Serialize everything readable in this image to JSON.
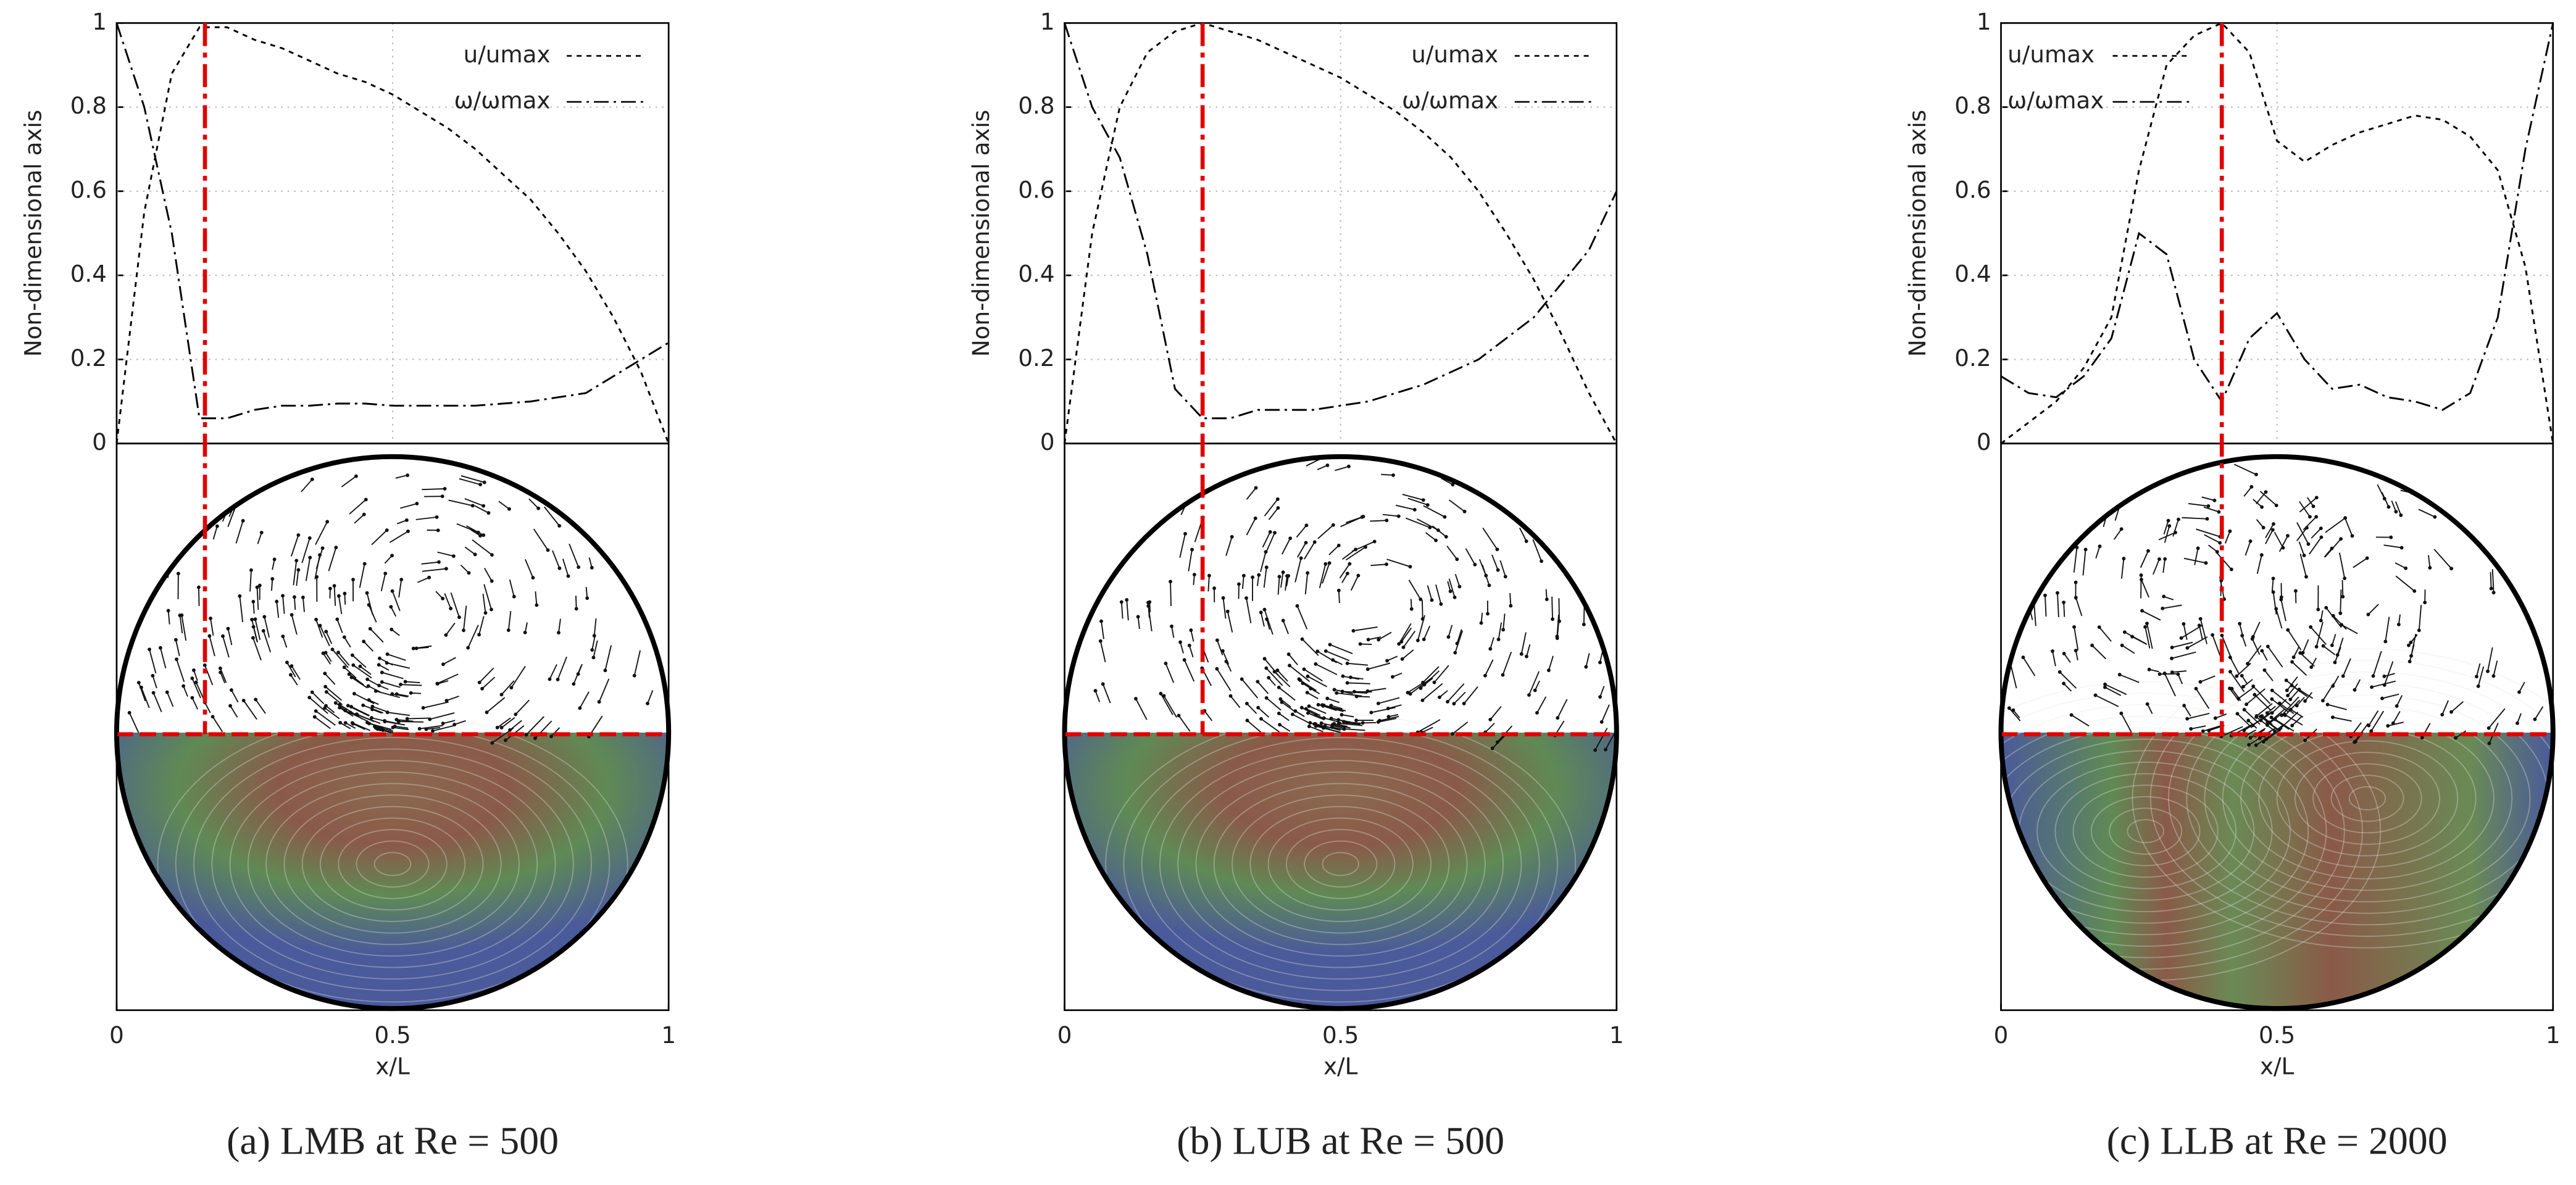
{
  "chart_data": [
    {
      "type": "line",
      "caption": "(a) LMB at Re = 500",
      "xlabel": "x/L",
      "ylabel": "Non-dimensional axis",
      "x": [
        0,
        0.05,
        0.1,
        0.15,
        0.2,
        0.25,
        0.3,
        0.35,
        0.4,
        0.45,
        0.5,
        0.55,
        0.6,
        0.65,
        0.7,
        0.75,
        0.8,
        0.85,
        0.9,
        0.95,
        1
      ],
      "series": [
        {
          "name": "u/umax",
          "color": "#000000",
          "style": "dashed",
          "values": [
            0,
            0.55,
            0.88,
            0.99,
            0.99,
            0.96,
            0.94,
            0.91,
            0.88,
            0.86,
            0.83,
            0.79,
            0.75,
            0.7,
            0.64,
            0.58,
            0.5,
            0.41,
            0.3,
            0.17,
            0
          ]
        },
        {
          "name": "ω/ωmax",
          "color": "#000000",
          "style": "dash-dot",
          "values": [
            1,
            0.8,
            0.5,
            0.06,
            0.06,
            0.08,
            0.09,
            0.09,
            0.095,
            0.095,
            0.09,
            0.09,
            0.09,
            0.09,
            0.095,
            0.1,
            0.11,
            0.12,
            0.16,
            0.2,
            0.24
          ]
        }
      ],
      "vline_x": 0.16,
      "vline_color": "#e00000",
      "legend": "top-right",
      "grid": true,
      "xlim": [
        0,
        1
      ],
      "ylim": [
        0,
        1
      ],
      "xticks": [
        0,
        0.5,
        1
      ],
      "yticks": [
        0,
        0.2,
        0.4,
        0.6,
        0.8,
        1
      ]
    },
    {
      "type": "line",
      "caption": "(b) LUB at Re = 500",
      "xlabel": "x/L",
      "ylabel": "Non-dimensional axis",
      "x": [
        0,
        0.05,
        0.1,
        0.15,
        0.2,
        0.25,
        0.3,
        0.35,
        0.4,
        0.45,
        0.5,
        0.55,
        0.6,
        0.65,
        0.7,
        0.75,
        0.8,
        0.85,
        0.9,
        0.95,
        1
      ],
      "series": [
        {
          "name": "u/umax",
          "color": "#000000",
          "style": "dashed",
          "values": [
            0,
            0.5,
            0.8,
            0.93,
            0.98,
            1,
            0.98,
            0.96,
            0.93,
            0.9,
            0.87,
            0.83,
            0.79,
            0.74,
            0.68,
            0.6,
            0.5,
            0.39,
            0.26,
            0.12,
            0
          ]
        },
        {
          "name": "ω/ωmax",
          "color": "#000000",
          "style": "dash-dot",
          "values": [
            1,
            0.8,
            0.68,
            0.45,
            0.13,
            0.06,
            0.06,
            0.08,
            0.08,
            0.08,
            0.09,
            0.1,
            0.12,
            0.14,
            0.17,
            0.2,
            0.25,
            0.3,
            0.38,
            0.46,
            0.6
          ]
        }
      ],
      "vline_x": 0.25,
      "vline_color": "#e00000",
      "legend": "top-right",
      "grid": true,
      "xlim": [
        0,
        1
      ],
      "ylim": [
        0,
        1
      ],
      "xticks": [
        0,
        0.5,
        1
      ],
      "yticks": [
        0,
        0.2,
        0.4,
        0.6,
        0.8,
        1
      ]
    },
    {
      "type": "line",
      "caption": "(c) LLB at Re = 2000",
      "xlabel": "x/L",
      "ylabel": "Non-dimensional axis",
      "x": [
        0,
        0.05,
        0.1,
        0.15,
        0.2,
        0.25,
        0.3,
        0.35,
        0.4,
        0.45,
        0.5,
        0.55,
        0.6,
        0.65,
        0.7,
        0.75,
        0.8,
        0.85,
        0.9,
        0.95,
        1
      ],
      "series": [
        {
          "name": "u/umax",
          "color": "#000000",
          "style": "dashed",
          "values": [
            0,
            0.05,
            0.1,
            0.18,
            0.3,
            0.65,
            0.9,
            0.97,
            1,
            0.93,
            0.72,
            0.67,
            0.71,
            0.74,
            0.76,
            0.78,
            0.77,
            0.73,
            0.65,
            0.42,
            0
          ]
        },
        {
          "name": "ω/ωmax",
          "color": "#000000",
          "style": "dash-dot",
          "values": [
            0.16,
            0.12,
            0.11,
            0.16,
            0.25,
            0.5,
            0.45,
            0.2,
            0.1,
            0.25,
            0.31,
            0.2,
            0.13,
            0.14,
            0.11,
            0.1,
            0.08,
            0.12,
            0.3,
            0.7,
            1
          ]
        }
      ],
      "vline_x": 0.4,
      "vline_color": "#e00000",
      "legend": "top-left",
      "grid": true,
      "xlim": [
        0,
        1
      ],
      "ylim": [
        0,
        1
      ],
      "xticks": [
        0,
        0.5,
        1
      ],
      "yticks": [
        0,
        0.2,
        0.4,
        0.6,
        0.8,
        1
      ]
    }
  ]
}
